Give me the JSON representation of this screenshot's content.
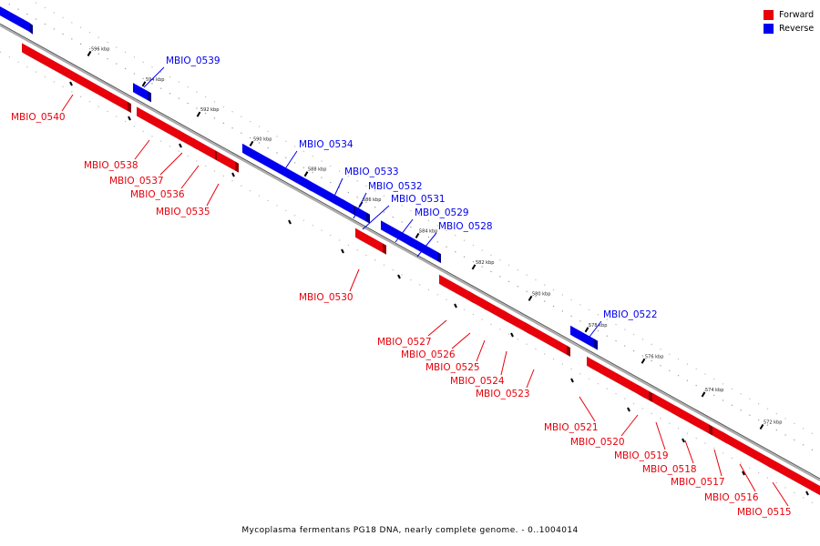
{
  "caption": "Mycoplasma fermentans PG18 DNA, nearly complete genome. - 0..1004014",
  "legend": [
    {
      "label": "Forward",
      "color": "#e8000b"
    },
    {
      "label": "Reverse",
      "color": "#0000ee"
    }
  ],
  "colors": {
    "forward": "#e8000b",
    "forward_side": "#900000",
    "reverse": "#0000ee",
    "reverse_side": "#000090",
    "backbone": "#888888"
  },
  "scale_ticks": [
    "596 kbp",
    "594 kbp",
    "592 kbp",
    "590 kbp",
    "588 kbp",
    "586 kbp",
    "584 kbp",
    "582 kbp",
    "580 kbp",
    "578 kbp",
    "576 kbp",
    "574 kbp",
    "572 kbp"
  ],
  "genes": [
    {
      "name": "MBIO_0540",
      "strand": "forward"
    },
    {
      "name": "MBIO_0539",
      "strand": "reverse"
    },
    {
      "name": "MBIO_0538",
      "strand": "forward"
    },
    {
      "name": "MBIO_0537",
      "strand": "forward"
    },
    {
      "name": "MBIO_0536",
      "strand": "forward"
    },
    {
      "name": "MBIO_0535",
      "strand": "forward"
    },
    {
      "name": "MBIO_0534",
      "strand": "reverse"
    },
    {
      "name": "MBIO_0533",
      "strand": "reverse"
    },
    {
      "name": "MBIO_0532",
      "strand": "reverse"
    },
    {
      "name": "MBIO_0531",
      "strand": "reverse"
    },
    {
      "name": "MBIO_0529",
      "strand": "reverse"
    },
    {
      "name": "MBIO_0528",
      "strand": "reverse"
    },
    {
      "name": "MBIO_0530",
      "strand": "forward"
    },
    {
      "name": "MBIO_0527",
      "strand": "forward"
    },
    {
      "name": "MBIO_0526",
      "strand": "forward"
    },
    {
      "name": "MBIO_0525",
      "strand": "forward"
    },
    {
      "name": "MBIO_0524",
      "strand": "forward"
    },
    {
      "name": "MBIO_0523",
      "strand": "forward"
    },
    {
      "name": "MBIO_0522",
      "strand": "reverse"
    },
    {
      "name": "MBIO_0521",
      "strand": "forward"
    },
    {
      "name": "MBIO_0520",
      "strand": "forward"
    },
    {
      "name": "MBIO_0519",
      "strand": "forward"
    },
    {
      "name": "MBIO_0518",
      "strand": "forward"
    },
    {
      "name": "MBIO_0517",
      "strand": "forward"
    },
    {
      "name": "MBIO_0516",
      "strand": "forward"
    },
    {
      "name": "MBIO_0515",
      "strand": "forward"
    }
  ]
}
